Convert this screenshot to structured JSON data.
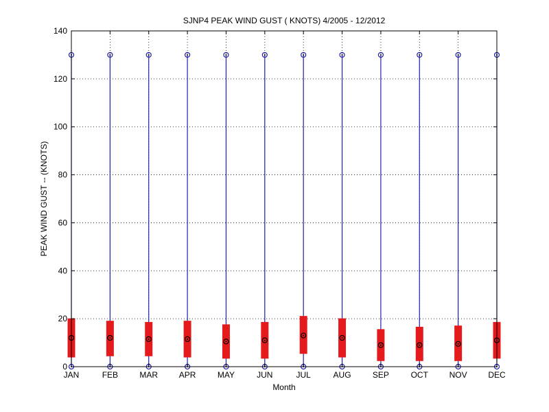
{
  "chart_data": {
    "type": "boxplot",
    "title": "SJNP4  PEAK WIND GUST ( KNOTS) 4/2005 - 12/2012",
    "xlabel": "Month",
    "ylabel": "PEAK WIND GUST -- (KNOTS)",
    "ylim": [
      0,
      140
    ],
    "yticks": [
      0,
      20,
      40,
      60,
      80,
      100,
      120,
      140
    ],
    "grid": true,
    "categories": [
      "JAN",
      "FEB",
      "MAR",
      "APR",
      "MAY",
      "JUN",
      "JUL",
      "AUG",
      "SEP",
      "OCT",
      "NOV",
      "DEC"
    ],
    "series": [
      {
        "min": [
          0,
          0,
          0,
          0,
          0,
          0,
          0,
          0,
          0,
          0,
          0,
          0
        ],
        "q1": [
          4,
          4.5,
          4.5,
          4,
          3.5,
          3.5,
          5.5,
          4,
          2.5,
          2.5,
          2.5,
          3.5
        ],
        "median": [
          12,
          12,
          11.5,
          11.5,
          10.5,
          11,
          13,
          12,
          9,
          9,
          9.5,
          11
        ],
        "q3": [
          20,
          19,
          18.5,
          19,
          17.5,
          18.5,
          21,
          20,
          15.5,
          16.5,
          17,
          18.5
        ],
        "max": [
          130,
          130,
          130,
          130,
          130,
          130,
          130,
          130,
          130,
          130,
          130,
          130
        ]
      }
    ],
    "colors": {
      "box": "#e41a1c",
      "whisker": "#1f1fa8",
      "median_marker": "#000000",
      "end_marker": "#1f1fa8"
    }
  }
}
